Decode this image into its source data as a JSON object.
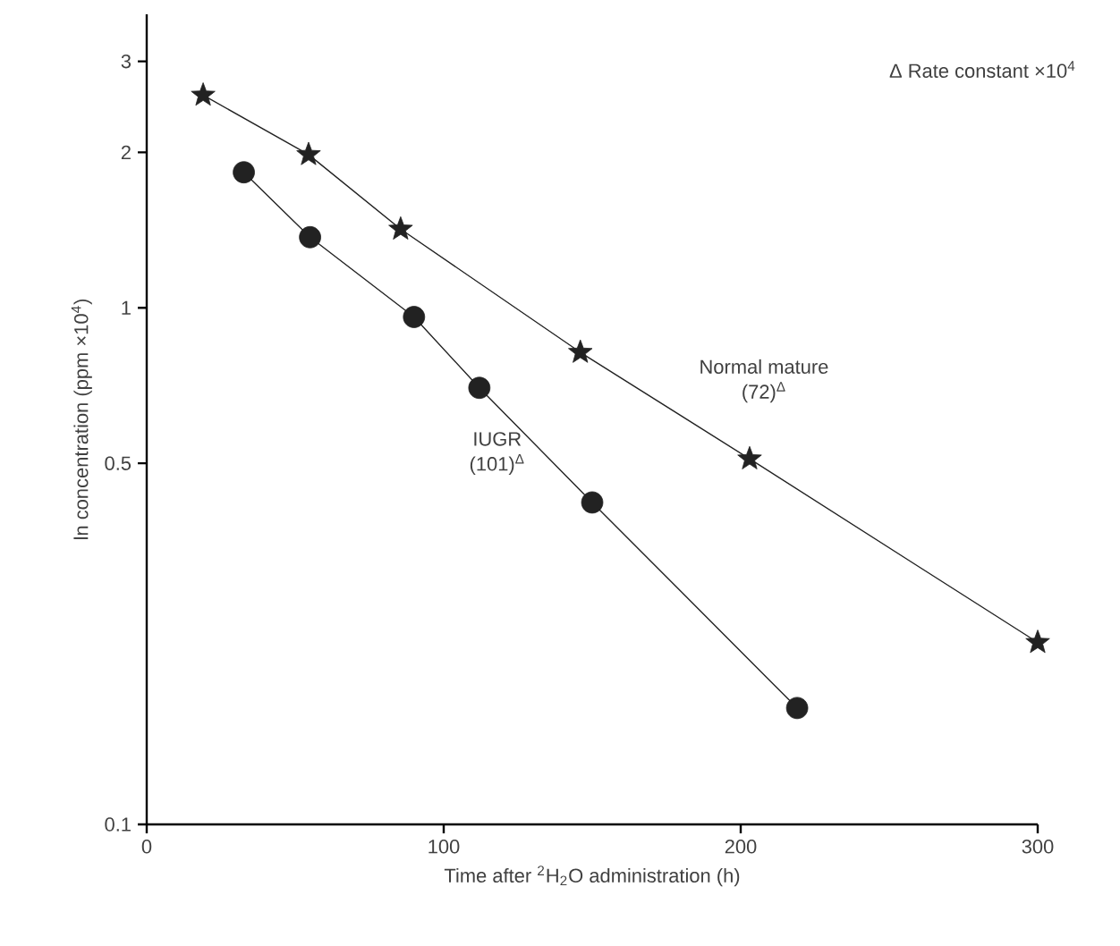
{
  "chart_data": {
    "type": "line",
    "xlabel": "Time after $^{2}$H$_{2}$O administration (h)",
    "ylabel": "ln concentration (ppm ×10$^{4}$)",
    "annotations": [
      "(72)$^{Δ}$",
      "(101)$^{Δ}$",
      "Δ Rate constant ×10$^{4}$"
    ],
    "series": [
      {
        "name": "Normal mature",
        "color": "#222222",
        "marker": "star",
        "x": [
          19,
          54.5,
          85.5,
          146,
          203,
          300
        ],
        "values": [
          2.58,
          1.98,
          1.42,
          0.82,
          0.51,
          0.225
        ]
      },
      {
        "name": "IUGR",
        "color": "#222222",
        "marker": "circle",
        "x": [
          32.7,
          55,
          90,
          112,
          150,
          219
        ],
        "values": [
          1.83,
          1.37,
          0.96,
          0.7,
          0.42,
          0.168
        ]
      }
    ],
    "log": "y",
    "xlim": [
      0,
      300
    ],
    "ylim": [
      0.1,
      3.7
    ],
    "xticks": [
      0,
      100,
      200,
      300
    ],
    "yticks": [
      0.1,
      0.5,
      1,
      2,
      3
    ],
    "grid": false,
    "line_style": "solid"
  }
}
